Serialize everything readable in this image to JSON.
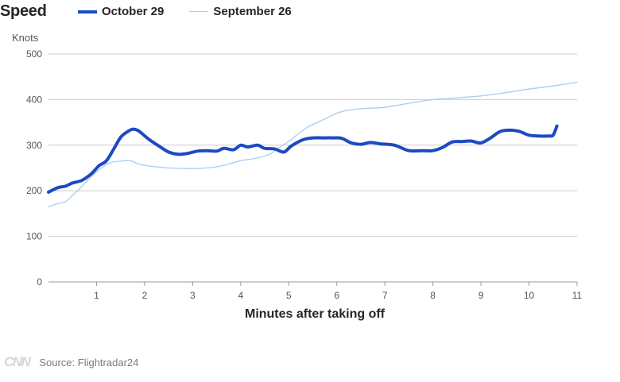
{
  "header": {
    "title": "Speed"
  },
  "footer": {
    "logo_text": "CNN",
    "source": "Source: Flightradar24"
  },
  "colors": {
    "oct29": "#1b4ac2",
    "sep26": "#a9cdf1",
    "grid": "#cccccc"
  },
  "chart_data": {
    "type": "line",
    "title": "Speed",
    "ylabel": "Knots",
    "xlabel": "Minutes after taking off",
    "xlim": [
      0,
      11
    ],
    "ylim": [
      0,
      500
    ],
    "xticks": [
      "1",
      "2",
      "3",
      "4",
      "5",
      "6",
      "7",
      "8",
      "9",
      "10",
      "11"
    ],
    "yticks": [
      "0",
      "100",
      "200",
      "300",
      "400",
      "500"
    ],
    "grid": true,
    "legend_position": "top",
    "series": [
      {
        "name": "October 29",
        "style": "thick",
        "x": [
          0,
          0.2,
          0.35,
          0.5,
          0.7,
          0.9,
          1.05,
          1.2,
          1.35,
          1.5,
          1.65,
          1.75,
          1.85,
          1.95,
          2.1,
          2.3,
          2.5,
          2.7,
          2.9,
          3.1,
          3.3,
          3.5,
          3.65,
          3.85,
          4.0,
          4.15,
          4.35,
          4.5,
          4.7,
          4.9,
          5.05,
          5.3,
          5.5,
          5.7,
          5.9,
          6.1,
          6.3,
          6.5,
          6.7,
          6.9,
          7.2,
          7.5,
          7.8,
          8.0,
          8.2,
          8.4,
          8.6,
          8.8,
          9.0,
          9.2,
          9.4,
          9.6,
          9.8,
          10.0,
          10.2,
          10.4,
          10.5,
          10.58
        ],
        "y": [
          197,
          207,
          210,
          217,
          223,
          238,
          255,
          265,
          290,
          317,
          330,
          335,
          333,
          325,
          312,
          298,
          285,
          280,
          282,
          287,
          288,
          287,
          293,
          290,
          300,
          296,
          300,
          293,
          292,
          285,
          298,
          312,
          316,
          316,
          316,
          315,
          305,
          302,
          306,
          303,
          300,
          288,
          288,
          288,
          295,
          307,
          308,
          309,
          305,
          316,
          330,
          333,
          330,
          322,
          320,
          320,
          322,
          342
        ]
      },
      {
        "name": "September 26",
        "style": "thin",
        "x": [
          0,
          0.2,
          0.35,
          0.5,
          0.7,
          0.9,
          1.1,
          1.3,
          1.5,
          1.7,
          1.9,
          2.2,
          2.5,
          2.8,
          3.1,
          3.4,
          3.7,
          4.0,
          4.3,
          4.6,
          4.8,
          5.0,
          5.2,
          5.4,
          5.6,
          5.8,
          6.0,
          6.2,
          6.5,
          7.0,
          7.5,
          8.0,
          8.5,
          9.0,
          9.5,
          10.0,
          10.5,
          11.0
        ],
        "y": [
          165,
          172,
          176,
          190,
          210,
          232,
          250,
          262,
          265,
          266,
          258,
          253,
          250,
          249,
          249,
          251,
          257,
          266,
          271,
          280,
          295,
          308,
          325,
          340,
          350,
          360,
          370,
          376,
          380,
          383,
          392,
          400,
          404,
          408,
          415,
          423,
          430,
          438
        ]
      }
    ]
  }
}
